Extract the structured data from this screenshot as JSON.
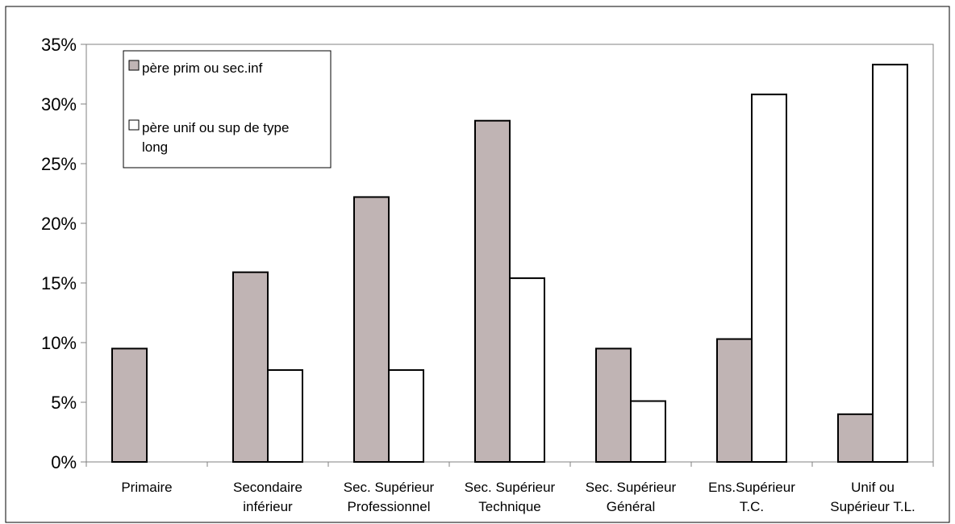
{
  "chart_data": {
    "type": "bar",
    "categories": [
      [
        "Primaire"
      ],
      [
        "Secondaire",
        "inférieur"
      ],
      [
        "Sec. Supérieur",
        "Professionnel"
      ],
      [
        "Sec. Supérieur",
        "Technique"
      ],
      [
        "Sec. Supérieur",
        "Général"
      ],
      [
        "Ens.Supérieur",
        "T.C."
      ],
      [
        "Unif ou",
        "Supérieur T.L."
      ]
    ],
    "series": [
      {
        "name": [
          "père prim ou sec.inf"
        ],
        "values": [
          9.5,
          15.9,
          22.2,
          28.6,
          9.5,
          10.3,
          4.0
        ],
        "color": "#c0b4b4"
      },
      {
        "name": [
          "père unif ou sup de type",
          "long"
        ],
        "values": [
          0,
          7.7,
          7.7,
          15.4,
          5.1,
          30.8,
          33.3
        ],
        "color": "#ffffff"
      }
    ],
    "ylim": [
      0,
      35
    ],
    "yticks": [
      0,
      5,
      10,
      15,
      20,
      25,
      30,
      35
    ],
    "ytick_labels": [
      "0%",
      "5%",
      "10%",
      "15%",
      "20%",
      "25%",
      "30%",
      "35%"
    ],
    "grid": false,
    "legend_position": "top-left",
    "colors": {
      "border": "#000000",
      "axis": "#808080",
      "bar_stroke": "#000000"
    }
  }
}
